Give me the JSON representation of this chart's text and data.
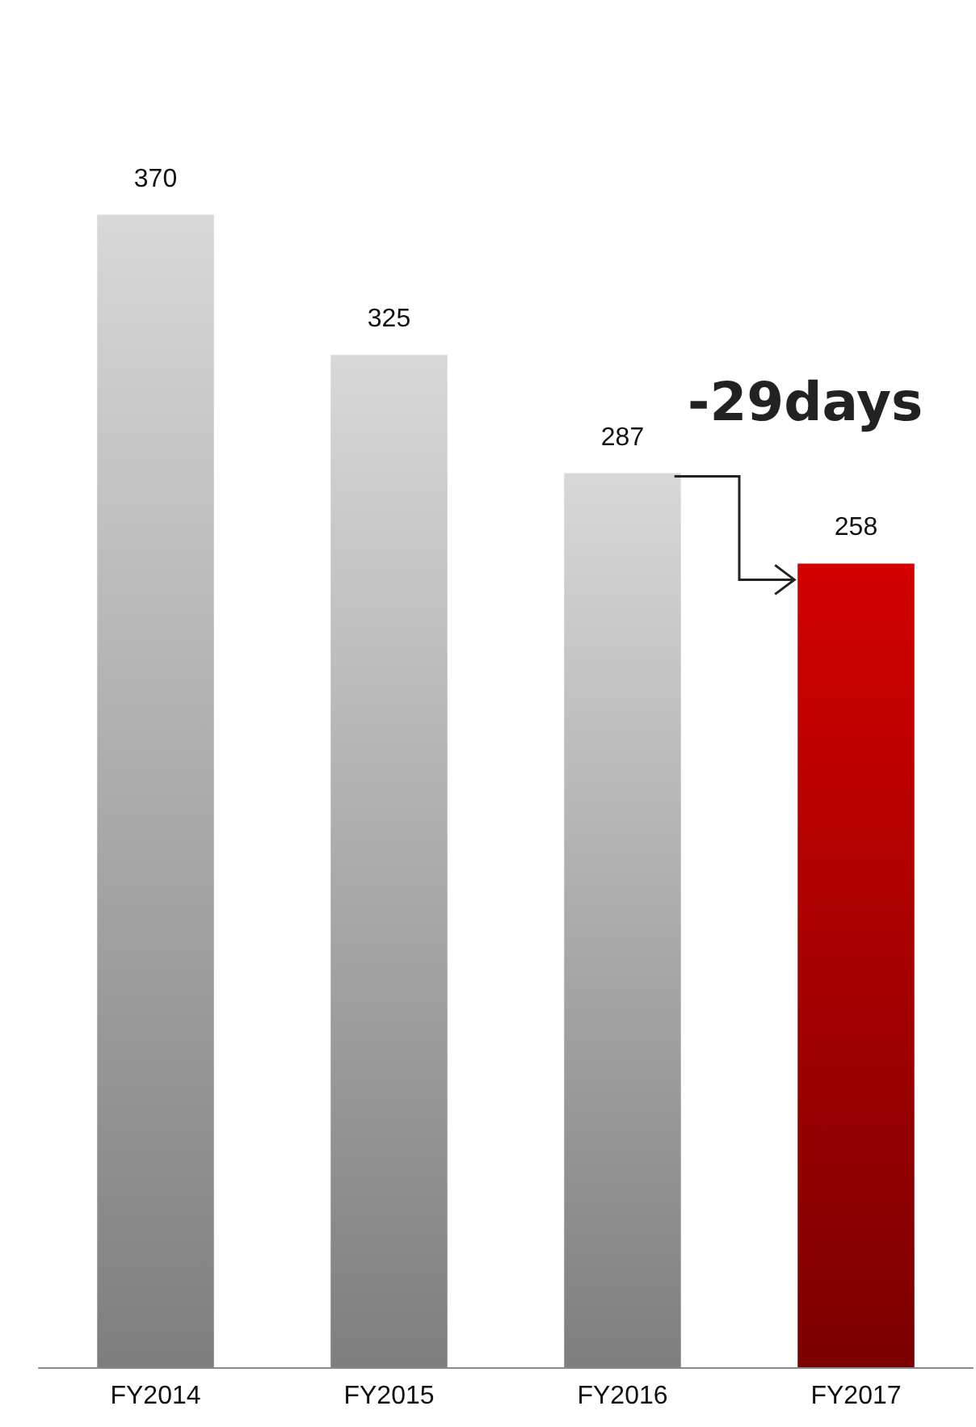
{
  "chart_data": {
    "type": "bar",
    "categories": [
      "FY2014",
      "FY2015",
      "FY2016",
      "FY2017"
    ],
    "values": [
      370,
      325,
      287,
      258
    ],
    "colors": [
      "#b4b4b4",
      "#b4b4b4",
      "#b4b4b4",
      "#b00000"
    ],
    "data_labels": true,
    "annotations": [
      "-29days"
    ]
  }
}
